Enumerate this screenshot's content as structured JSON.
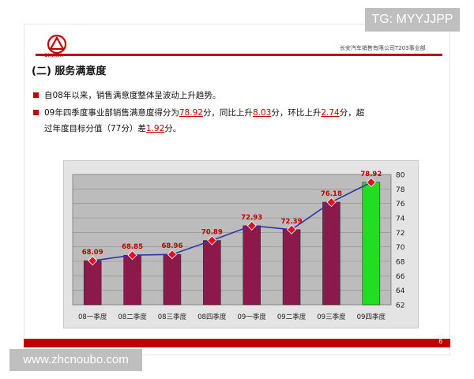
{
  "overlay": {
    "tg_label": "TG: MYYJJPP",
    "watermark": "www.zhcnoubo.com"
  },
  "header": {
    "logo_text": "CHANA",
    "company": "长安汽车销售有限公司T203事业部",
    "page_number": "6"
  },
  "section": {
    "title": "(二) 服务满意度"
  },
  "bullets": {
    "b1": "自08年以来，销售满意度整体呈波动上升趋势。",
    "b2_p1": "09年四季度事业部销售满意度得分为",
    "b2_v1": "78.92",
    "b2_p2": "分，同比上升",
    "b2_v2": "8.03",
    "b2_p3": "分，环比上升",
    "b2_v3": "2.74",
    "b2_p4": "分，超",
    "b2_p5": "过年度目标分值（77分）差",
    "b2_v4": "1.92",
    "b2_p6": "分。"
  },
  "colors": {
    "bar": "#8b1a4a",
    "highlight_bar": "#22dd22",
    "line": "#3333aa",
    "marker": "#e01020",
    "label": "#c00000",
    "accent": "#c00000"
  },
  "chart_data": {
    "type": "bar",
    "categories": [
      "08一季度",
      "08二季度",
      "08三季度",
      "08四季度",
      "09一季度",
      "09二季度",
      "09三季度",
      "09四季度"
    ],
    "values": [
      68.09,
      68.85,
      68.96,
      70.89,
      72.93,
      72.39,
      76.18,
      78.92
    ],
    "value_labels": [
      "68.09",
      "68.85",
      "68.96",
      "70.89",
      "72.93",
      "72.39",
      "76.18",
      "78.92"
    ],
    "highlight_index": 7,
    "overlay_line": true,
    "ylim": [
      62,
      80
    ],
    "yticks": [
      62,
      64,
      66,
      68,
      70,
      72,
      74,
      76,
      78,
      80
    ],
    "y_axis_side": "right",
    "grid": true,
    "title": "",
    "xlabel": "",
    "ylabel": ""
  }
}
